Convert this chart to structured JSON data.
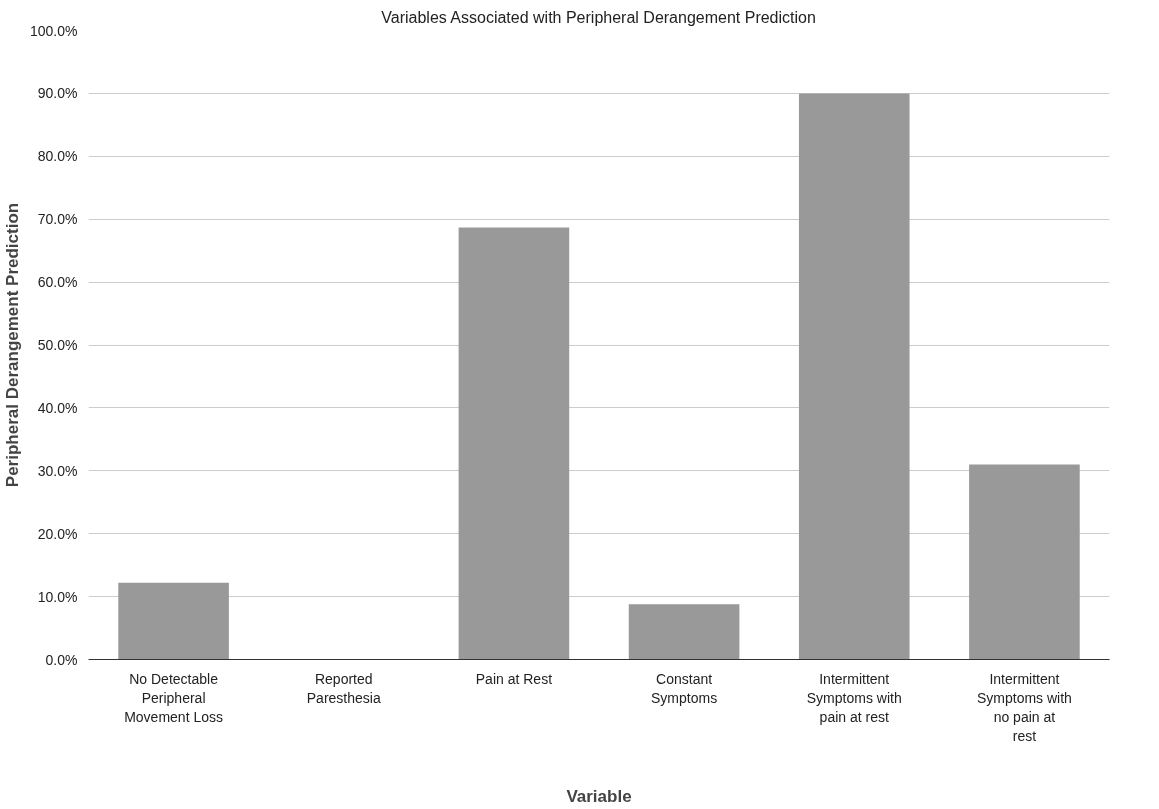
{
  "chart_data": {
    "type": "bar",
    "title": "Variables Associated with Peripheral Derangement Prediction",
    "xlabel": "Variable",
    "ylabel": "Peripheral Derangement Prediction",
    "categories": [
      "No Detectable Peripheral Movement Loss",
      "Reported Paresthesia",
      "Pain at Rest",
      "Constant Symptoms",
      "Intermittent Symptoms with pain at rest",
      "Intermittent Symptoms with no pain at rest"
    ],
    "series": [
      {
        "color": "#999999",
        "values": [
          12.2,
          0,
          68.7,
          8.8,
          90.0,
          31.0
        ]
      }
    ],
    "ylim": [
      0,
      100
    ],
    "yticks": [
      {
        "value": 0,
        "label": "0.0%"
      },
      {
        "value": 10,
        "label": "10.0%"
      },
      {
        "value": 20,
        "label": "20.0%"
      },
      {
        "value": 30,
        "label": "30.0%"
      },
      {
        "value": 40,
        "label": "40.0%"
      },
      {
        "value": 50,
        "label": "50.0%"
      },
      {
        "value": 60,
        "label": "60.0%"
      },
      {
        "value": 70,
        "label": "70.0%"
      },
      {
        "value": 80,
        "label": "80.0%"
      },
      {
        "value": 90,
        "label": "90.0%"
      },
      {
        "value": 100,
        "label": "100.0%"
      }
    ],
    "grid": "y"
  }
}
